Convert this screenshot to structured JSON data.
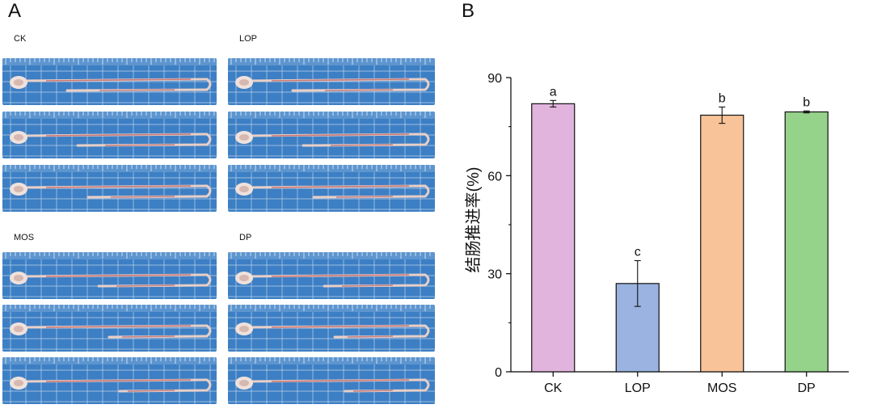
{
  "panel_a": {
    "letter": "A",
    "groups": [
      "CK",
      "LOP",
      "MOS",
      "DP"
    ]
  },
  "panel_b": {
    "letter": "B"
  },
  "chart_data": {
    "type": "bar",
    "title": "",
    "xlabel": "",
    "ylabel": "结肠推进率(%)",
    "ylim": [
      0,
      90
    ],
    "yticks": [
      0,
      30,
      60,
      90
    ],
    "categories": [
      "CK",
      "LOP",
      "MOS",
      "DP"
    ],
    "values": [
      82,
      27,
      78.5,
      79.5
    ],
    "errors": [
      1,
      7,
      2.5,
      0.3
    ],
    "significance_letters": [
      "a",
      "c",
      "b",
      "b"
    ],
    "colors": [
      "#e0b4dc",
      "#9ab3e0",
      "#f8c399",
      "#95d28a"
    ]
  }
}
